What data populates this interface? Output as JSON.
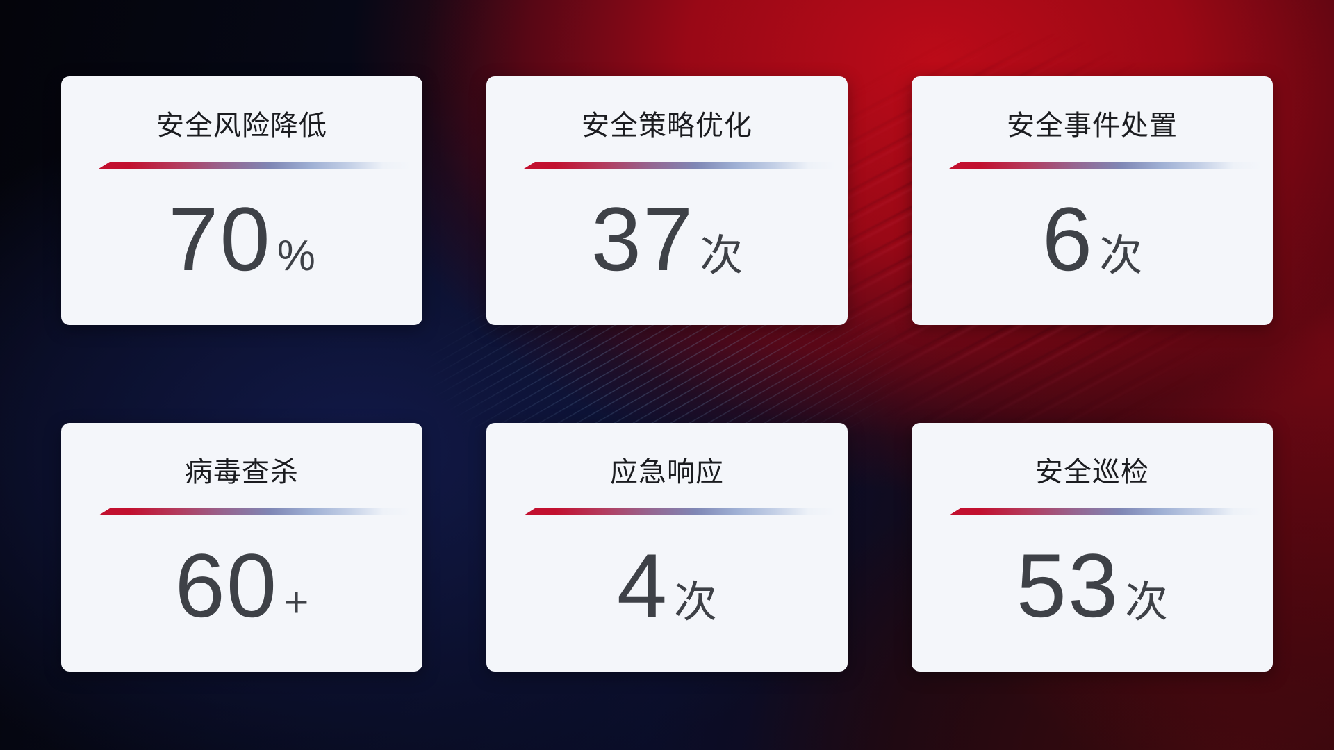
{
  "background": {
    "base_color": "#07070f",
    "navy_glow_color": "#121a4a",
    "red_glow_color": "#bf0b18",
    "dark_maroon_color": "#330709",
    "streak_line_color": "#82aad2"
  },
  "card_style": {
    "background": "#f4f6fa",
    "title_color": "#1b1c20",
    "value_color": "#3e4147",
    "divider_start_color": "#c2102f",
    "divider_mid_color": "#7f87b5",
    "divider_end_color": "#dfe7f3"
  },
  "cards": [
    {
      "title": "安全风险降低",
      "value": "70",
      "suffix": "%"
    },
    {
      "title": "安全策略优化",
      "value": "37",
      "suffix": "次"
    },
    {
      "title": "安全事件处置",
      "value": "6",
      "suffix": "次"
    },
    {
      "title": "病毒查杀",
      "value": "60",
      "suffix": "+"
    },
    {
      "title": "应急响应",
      "value": "4",
      "suffix": "次"
    },
    {
      "title": "安全巡检",
      "value": "53",
      "suffix": "次"
    }
  ]
}
